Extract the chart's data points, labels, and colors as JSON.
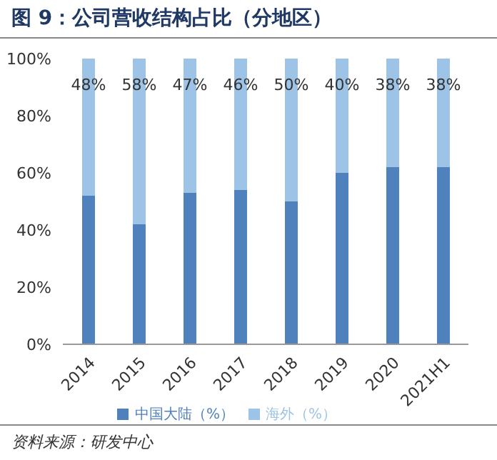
{
  "chart_data": {
    "type": "bar",
    "title": "图 9：公司营收结构占比（分地区）",
    "categories": [
      "2014",
      "2015",
      "2016",
      "2017",
      "2018",
      "2019",
      "2020",
      "2021H1"
    ],
    "stacked": true,
    "series": [
      {
        "name": "中国大陆（%）",
        "color": "#4f81bd",
        "values": [
          52,
          42,
          53,
          54,
          50,
          60,
          62,
          62
        ]
      },
      {
        "name": "海外（%）",
        "color": "#9dc3e6",
        "values": [
          48,
          58,
          47,
          46,
          50,
          40,
          38,
          38
        ],
        "value_labels": [
          "48%",
          "58%",
          "47%",
          "46%",
          "50%",
          "40%",
          "38%",
          "38%"
        ]
      }
    ],
    "ylim": [
      0,
      100
    ],
    "yticks": [
      {
        "value": 0,
        "label": "0%"
      },
      {
        "value": 20,
        "label": "20%"
      },
      {
        "value": 40,
        "label": "40%"
      },
      {
        "value": 60,
        "label": "60%"
      },
      {
        "value": 80,
        "label": "80%"
      },
      {
        "value": 100,
        "label": "100%"
      }
    ],
    "legend": "bottom",
    "annotations": [
      "资料来源：研发中心"
    ]
  }
}
